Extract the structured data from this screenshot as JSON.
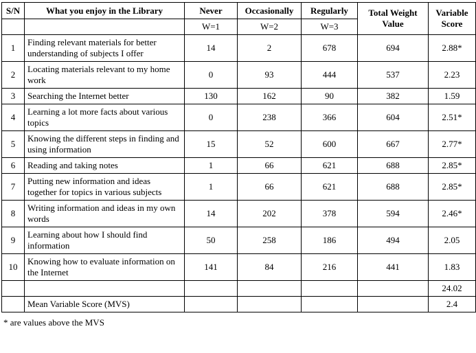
{
  "table": {
    "columns": [
      {
        "label": "S/N",
        "sub": ""
      },
      {
        "label": "What you enjoy in the Library",
        "sub": ""
      },
      {
        "label": "Never",
        "sub": "W=1"
      },
      {
        "label": "Occasionally",
        "sub": "W=2"
      },
      {
        "label": "Regularly",
        "sub": "W=3"
      },
      {
        "label": "Total Weight Value"
      },
      {
        "label": "Variable Score"
      }
    ],
    "rows": [
      {
        "sn": "1",
        "item": "Finding relevant materials for better understanding of subjects I offer",
        "never": "14",
        "occasionally": "2",
        "regularly": "678",
        "total": "694",
        "score": "2.88*"
      },
      {
        "sn": "2",
        "item": "Locating materials relevant to my home work",
        "never": "0",
        "occasionally": "93",
        "regularly": "444",
        "total": "537",
        "score": "2.23"
      },
      {
        "sn": "3",
        "item": "Searching the Internet better",
        "never": "130",
        "occasionally": "162",
        "regularly": "90",
        "total": "382",
        "score": "1.59"
      },
      {
        "sn": "4",
        "item": "Learning a lot more facts about various topics",
        "never": "0",
        "occasionally": "238",
        "regularly": "366",
        "total": "604",
        "score": "2.51*"
      },
      {
        "sn": "5",
        "item": "Knowing the different steps in finding and using information",
        "never": "15",
        "occasionally": "52",
        "regularly": "600",
        "total": "667",
        "score": "2.77*"
      },
      {
        "sn": "6",
        "item": "Reading and taking notes",
        "never": "1",
        "occasionally": "66",
        "regularly": "621",
        "total": "688",
        "score": "2.85*"
      },
      {
        "sn": "7",
        "item": "Putting new information and ideas together for topics in various subjects",
        "never": "1",
        "occasionally": "66",
        "regularly": "621",
        "total": "688",
        "score": "2.85*"
      },
      {
        "sn": "8",
        "item": "Writing information and ideas in my own words",
        "never": "14",
        "occasionally": "202",
        "regularly": "378",
        "total": "594",
        "score": "2.46*"
      },
      {
        "sn": "9",
        "item": "Learning about how I should find information",
        "never": "50",
        "occasionally": "258",
        "regularly": "186",
        "total": "494",
        "score": "2.05"
      },
      {
        "sn": "10",
        "item": "Knowing how to evaluate information on the Internet",
        "never": "141",
        "occasionally": "84",
        "regularly": "216",
        "total": "441",
        "score": "1.83"
      }
    ],
    "sum_row": {
      "score": "24.02"
    },
    "mvs_row": {
      "label": "Mean Variable Score (MVS)",
      "score": "2.4"
    }
  },
  "footnote": "* are values above the MVS"
}
